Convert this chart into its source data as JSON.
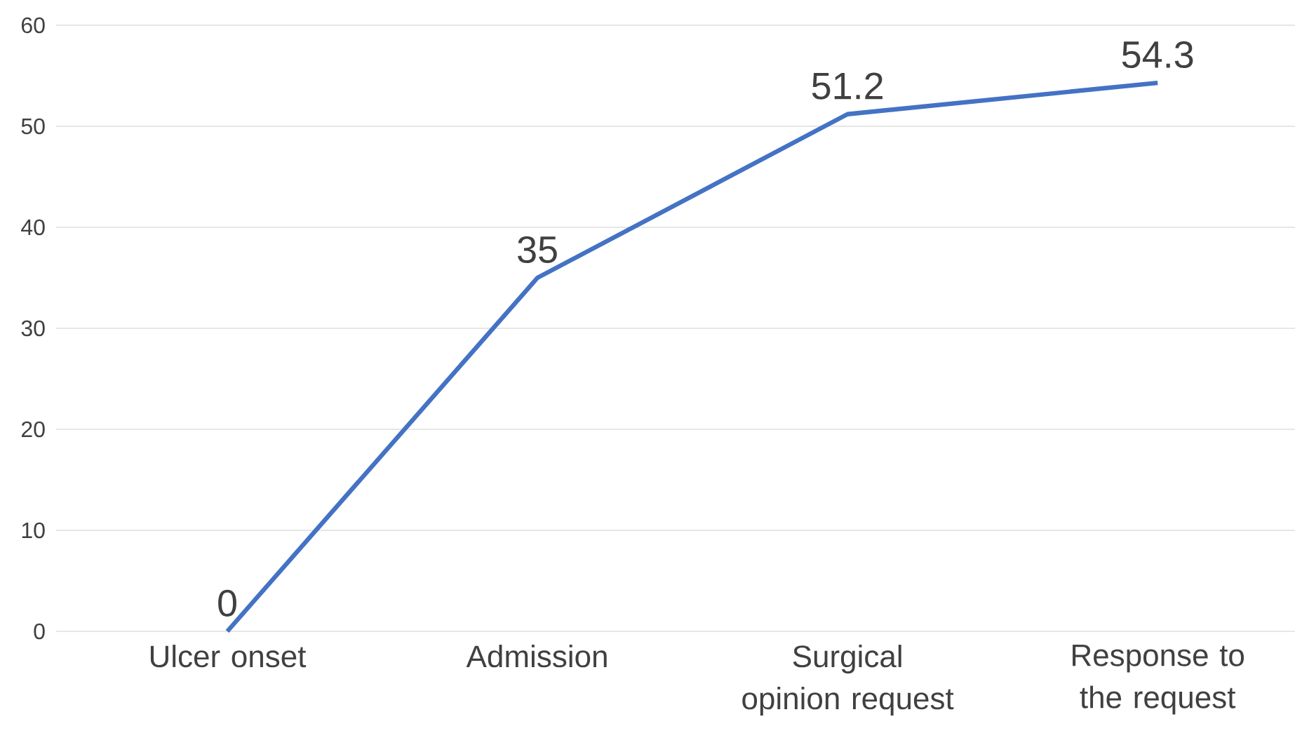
{
  "chart_data": {
    "type": "line",
    "categories": [
      "Ulcer onset",
      "Admission",
      "Surgical opinion request",
      "Response to the request"
    ],
    "values": [
      0,
      35,
      51.2,
      54.3
    ],
    "color": "#4472c4",
    "ylim": [
      0,
      60
    ],
    "yticks": [
      0,
      10,
      20,
      30,
      40,
      50,
      60
    ],
    "grid": "y",
    "data_labels": true,
    "marker": "none",
    "line_style": "solid"
  }
}
